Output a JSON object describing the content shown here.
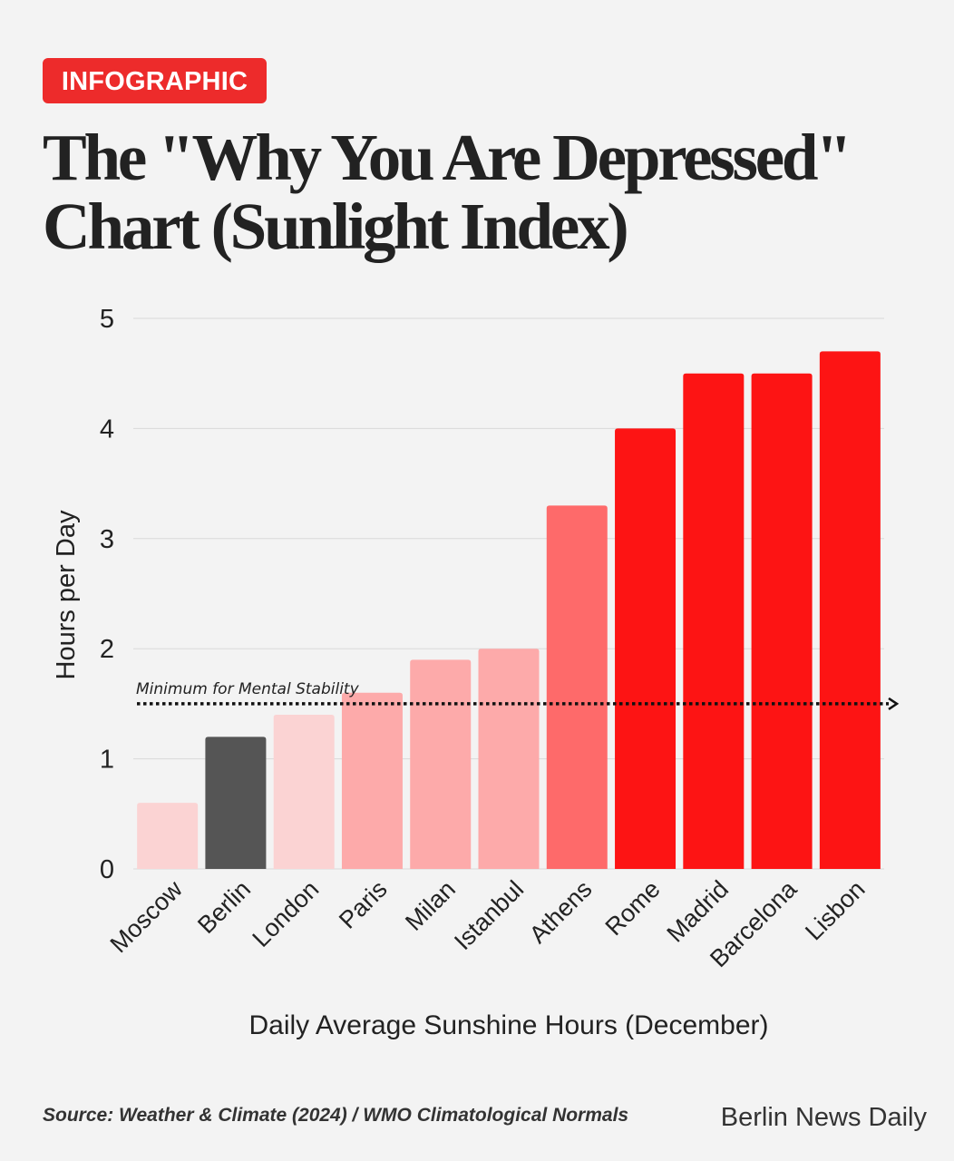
{
  "badge": "INFOGRAPHIC",
  "title_line1": "The \"Why You Are Depressed\"",
  "title_line2": "Chart (Sunlight Index)",
  "source": "Source: Weather & Climate (2024) / WMO Climatological Normals",
  "brand": "Berlin News Daily",
  "chart_data": {
    "type": "bar",
    "categories": [
      "Moscow",
      "Berlin",
      "London",
      "Paris",
      "Milan",
      "Istanbul",
      "Athens",
      "Rome",
      "Madrid",
      "Barcelona",
      "Lisbon"
    ],
    "values": [
      0.6,
      1.2,
      1.4,
      1.6,
      1.9,
      2.0,
      3.3,
      4.0,
      4.5,
      4.5,
      4.7
    ],
    "colors": [
      "#fbd3d3",
      "#555555",
      "#fbd3d3",
      "#fdaaaa",
      "#fdaaaa",
      "#fdaaaa",
      "#fe6a6a",
      "#fd1414",
      "#fd1414",
      "#fd1414",
      "#fd1414"
    ],
    "xlabel": "Daily Average Sunshine Hours (December)",
    "ylabel": "Hours per Day",
    "ylim": [
      0,
      5
    ],
    "yticks": [
      0,
      1,
      2,
      3,
      4,
      5
    ],
    "grid": true,
    "reference_line": {
      "value": 1.5,
      "label": "Minimum for Mental Stability",
      "style": "dotted-arrow"
    }
  }
}
